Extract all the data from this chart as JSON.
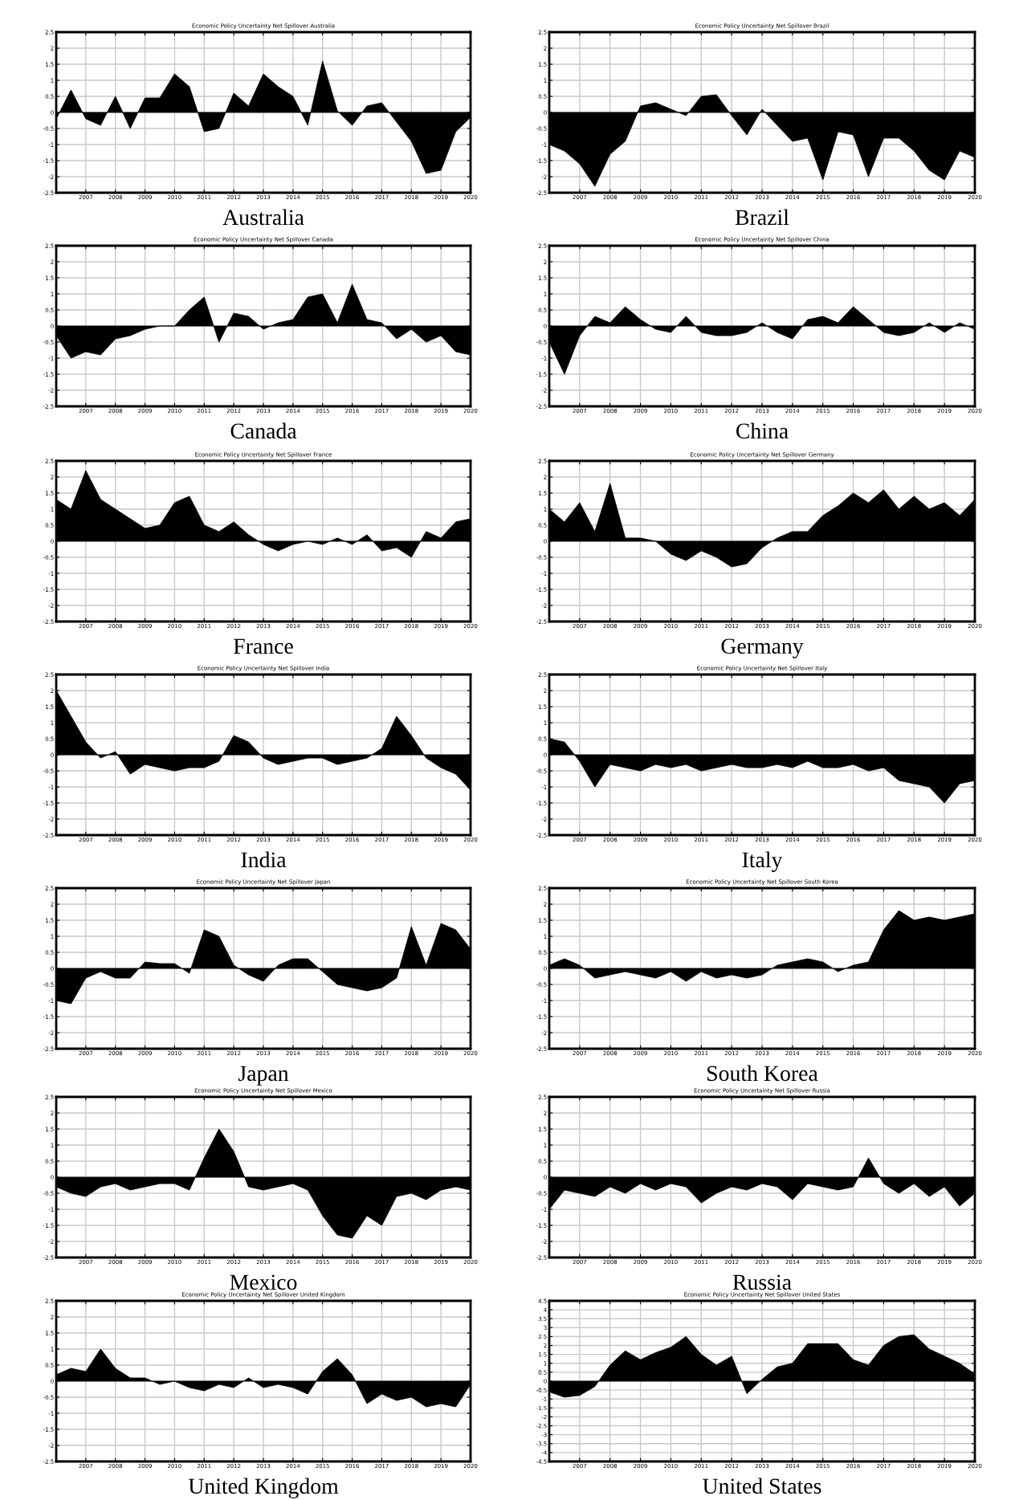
{
  "chart_data": [
    {
      "type": "area",
      "title": "Economic Policy Uncertainty Net Spillover Australia",
      "xlabel": "Australia",
      "xlim": [
        2006,
        2020
      ],
      "ylim": [
        -2.5,
        2.5
      ],
      "xticks": [
        2007,
        2008,
        2009,
        2010,
        2011,
        2012,
        2013,
        2014,
        2015,
        2016,
        2017,
        2018,
        2019,
        2020
      ],
      "yticks": [
        -2.5,
        -2,
        -1.5,
        -1,
        -0.5,
        0,
        0.5,
        1,
        1.5,
        2,
        2.5
      ],
      "grid": true,
      "x": [
        2006,
        2006.5,
        2007,
        2007.5,
        2008,
        2008.5,
        2009,
        2009.5,
        2010,
        2010.5,
        2011,
        2011.5,
        2012,
        2012.5,
        2013,
        2013.5,
        2014,
        2014.5,
        2015,
        2015.5,
        2016,
        2016.5,
        2017,
        2017.5,
        2018,
        2018.5,
        2019,
        2019.5,
        2020
      ],
      "series": [
        {
          "color": "#000000",
          "values": [
            -0.2,
            0.7,
            -0.2,
            -0.4,
            0.5,
            -0.5,
            0.45,
            0.45,
            1.2,
            0.8,
            -0.6,
            -0.5,
            0.6,
            0.2,
            1.2,
            0.8,
            0.5,
            -0.4,
            1.6,
            0.05,
            -0.4,
            0.2,
            0.3,
            -0.3,
            -0.9,
            -1.9,
            -1.8,
            -0.6,
            -0.15
          ]
        }
      ]
    },
    {
      "type": "area",
      "title": "Economic Policy Uncertainty Net Spillover Brazil",
      "xlabel": "Brazil",
      "xlim": [
        2006,
        2020
      ],
      "ylim": [
        -2.5,
        2.5
      ],
      "xticks": [
        2007,
        2008,
        2009,
        2010,
        2011,
        2012,
        2013,
        2014,
        2015,
        2016,
        2017,
        2018,
        2019,
        2020
      ],
      "yticks": [
        -2.5,
        -2,
        -1.5,
        -1,
        -0.5,
        0,
        0.5,
        1,
        1.5,
        2,
        2.5
      ],
      "grid": true,
      "x": [
        2006,
        2006.5,
        2007,
        2007.5,
        2008,
        2008.5,
        2009,
        2009.5,
        2010,
        2010.5,
        2011,
        2011.5,
        2012,
        2012.5,
        2013,
        2013.5,
        2014,
        2014.5,
        2015,
        2015.5,
        2016,
        2016.5,
        2017,
        2017.5,
        2018,
        2018.5,
        2019,
        2019.5,
        2020
      ],
      "series": [
        {
          "color": "#000000",
          "values": [
            -1.0,
            -1.2,
            -1.6,
            -2.3,
            -1.3,
            -0.9,
            0.2,
            0.3,
            0.1,
            -0.1,
            0.5,
            0.55,
            -0.1,
            -0.7,
            0.1,
            -0.4,
            -0.9,
            -0.8,
            -2.1,
            -0.6,
            -0.7,
            -2.0,
            -0.8,
            -0.8,
            -1.2,
            -1.8,
            -2.1,
            -1.2,
            -1.4
          ]
        }
      ]
    },
    {
      "type": "area",
      "title": "Economic Policy Uncertainty Net Spillover Canada",
      "xlabel": "Canada",
      "xlim": [
        2006,
        2020
      ],
      "ylim": [
        -2.5,
        2.5
      ],
      "xticks": [
        2007,
        2008,
        2009,
        2010,
        2011,
        2012,
        2013,
        2014,
        2015,
        2016,
        2017,
        2018,
        2019,
        2020
      ],
      "yticks": [
        -2.5,
        -2,
        -1.5,
        -1,
        -0.5,
        0,
        0.5,
        1,
        1.5,
        2,
        2.5
      ],
      "grid": true,
      "x": [
        2006,
        2006.5,
        2007,
        2007.5,
        2008,
        2008.5,
        2009,
        2009.5,
        2010,
        2010.5,
        2011,
        2011.5,
        2012,
        2012.5,
        2013,
        2013.5,
        2014,
        2014.5,
        2015,
        2015.5,
        2016,
        2016.5,
        2017,
        2017.5,
        2018,
        2018.5,
        2019,
        2019.5,
        2020
      ],
      "series": [
        {
          "color": "#000000",
          "values": [
            -0.3,
            -1.0,
            -0.8,
            -0.9,
            -0.4,
            -0.3,
            -0.1,
            0,
            0,
            0.5,
            0.9,
            -0.5,
            0.4,
            0.3,
            -0.1,
            0.1,
            0.2,
            0.9,
            1.0,
            0.1,
            1.3,
            0.2,
            0.1,
            -0.4,
            -0.1,
            -0.5,
            -0.3,
            -0.8,
            -0.9
          ]
        }
      ]
    },
    {
      "type": "area",
      "title": "Economic Policy Uncertainty Net Spillover China",
      "xlabel": "China",
      "xlim": [
        2006,
        2020
      ],
      "ylim": [
        -2.5,
        2.5
      ],
      "xticks": [
        2007,
        2008,
        2009,
        2010,
        2011,
        2012,
        2013,
        2014,
        2015,
        2016,
        2017,
        2018,
        2019,
        2020
      ],
      "yticks": [
        -2.5,
        -2,
        -1.5,
        -1,
        -0.5,
        0,
        0.5,
        1,
        1.5,
        2,
        2.5
      ],
      "grid": true,
      "x": [
        2006,
        2006.5,
        2007,
        2007.5,
        2008,
        2008.5,
        2009,
        2009.5,
        2010,
        2010.5,
        2011,
        2011.5,
        2012,
        2012.5,
        2013,
        2013.5,
        2014,
        2014.5,
        2015,
        2015.5,
        2016,
        2016.5,
        2017,
        2017.5,
        2018,
        2018.5,
        2019,
        2019.5,
        2020
      ],
      "series": [
        {
          "color": "#000000",
          "values": [
            -0.5,
            -1.5,
            -0.3,
            0.3,
            0.1,
            0.6,
            0.2,
            -0.1,
            -0.2,
            0.3,
            -0.2,
            -0.3,
            -0.3,
            -0.2,
            0.1,
            -0.2,
            -0.4,
            0.2,
            0.3,
            0.1,
            0.6,
            0.2,
            -0.2,
            -0.3,
            -0.2,
            0.1,
            -0.2,
            0.1,
            -0.1
          ]
        }
      ]
    },
    {
      "type": "area",
      "title": "Economic Policy Uncertainty Net Spillover France",
      "xlabel": "France",
      "xlim": [
        2006,
        2020
      ],
      "ylim": [
        -2.5,
        2.5
      ],
      "xticks": [
        2007,
        2008,
        2009,
        2010,
        2011,
        2012,
        2013,
        2014,
        2015,
        2016,
        2017,
        2018,
        2019,
        2020
      ],
      "yticks": [
        -2.5,
        -2,
        -1.5,
        -1,
        -0.5,
        0,
        0.5,
        1,
        1.5,
        2,
        2.5
      ],
      "grid": true,
      "x": [
        2006,
        2006.5,
        2007,
        2007.5,
        2008,
        2008.5,
        2009,
        2009.5,
        2010,
        2010.5,
        2011,
        2011.5,
        2012,
        2012.5,
        2013,
        2013.5,
        2014,
        2014.5,
        2015,
        2015.5,
        2016,
        2016.5,
        2017,
        2017.5,
        2018,
        2018.5,
        2019,
        2019.5,
        2020
      ],
      "series": [
        {
          "color": "#000000",
          "values": [
            1.3,
            1.0,
            2.2,
            1.3,
            1.0,
            0.7,
            0.4,
            0.5,
            1.2,
            1.4,
            0.5,
            0.3,
            0.6,
            0.2,
            -0.1,
            -0.3,
            -0.1,
            0,
            -0.1,
            0.1,
            -0.1,
            0.2,
            -0.3,
            -0.2,
            -0.5,
            0.3,
            0.1,
            0.6,
            0.7
          ]
        }
      ]
    },
    {
      "type": "area",
      "title": "Economic Policy Uncertainty Net Spillover Germany",
      "xlabel": "Germany",
      "xlim": [
        2006,
        2020
      ],
      "ylim": [
        -2.5,
        2.5
      ],
      "xticks": [
        2007,
        2008,
        2009,
        2010,
        2011,
        2012,
        2013,
        2014,
        2015,
        2016,
        2017,
        2018,
        2019,
        2020
      ],
      "yticks": [
        -2.5,
        -2,
        -1.5,
        -1,
        -0.5,
        0,
        0.5,
        1,
        1.5,
        2,
        2.5
      ],
      "grid": true,
      "x": [
        2006,
        2006.5,
        2007,
        2007.5,
        2008,
        2008.5,
        2009,
        2009.5,
        2010,
        2010.5,
        2011,
        2011.5,
        2012,
        2012.5,
        2013,
        2013.5,
        2014,
        2014.5,
        2015,
        2015.5,
        2016,
        2016.5,
        2017,
        2017.5,
        2018,
        2018.5,
        2019,
        2019.5,
        2020
      ],
      "series": [
        {
          "color": "#000000",
          "values": [
            1.0,
            0.6,
            1.2,
            0.3,
            1.8,
            0.1,
            0.1,
            0,
            -0.4,
            -0.6,
            -0.3,
            -0.5,
            -0.8,
            -0.7,
            -0.2,
            0.1,
            0.3,
            0.3,
            0.8,
            1.1,
            1.5,
            1.2,
            1.6,
            1.0,
            1.4,
            1.0,
            1.2,
            0.8,
            1.3
          ]
        }
      ]
    },
    {
      "type": "area",
      "title": "Economic Policy Uncertainty Net Spillover India",
      "xlabel": "India",
      "xlim": [
        2006,
        2020
      ],
      "ylim": [
        -2.5,
        2.5
      ],
      "xticks": [
        2007,
        2008,
        2009,
        2010,
        2011,
        2012,
        2013,
        2014,
        2015,
        2016,
        2017,
        2018,
        2019,
        2020
      ],
      "yticks": [
        -2.5,
        -2,
        -1.5,
        -1,
        -0.5,
        0,
        0.5,
        1,
        1.5,
        2,
        2.5
      ],
      "grid": true,
      "x": [
        2006,
        2006.5,
        2007,
        2007.5,
        2008,
        2008.5,
        2009,
        2009.5,
        2010,
        2010.5,
        2011,
        2011.5,
        2012,
        2012.5,
        2013,
        2013.5,
        2014,
        2014.5,
        2015,
        2015.5,
        2016,
        2016.5,
        2017,
        2017.5,
        2018,
        2018.5,
        2019,
        2019.5,
        2020
      ],
      "series": [
        {
          "color": "#000000",
          "values": [
            2.0,
            1.2,
            0.4,
            -0.1,
            0.1,
            -0.6,
            -0.3,
            -0.4,
            -0.5,
            -0.4,
            -0.4,
            -0.2,
            0.6,
            0.4,
            -0.1,
            -0.3,
            -0.2,
            -0.1,
            -0.1,
            -0.3,
            -0.2,
            -0.1,
            0.2,
            1.2,
            0.6,
            -0.1,
            -0.4,
            -0.6,
            -1.1
          ]
        }
      ]
    },
    {
      "type": "area",
      "title": "Economic Policy Uncertainty Net Spillover Italy",
      "xlabel": "Italy",
      "xlim": [
        2006,
        2020
      ],
      "ylim": [
        -2.5,
        2.5
      ],
      "xticks": [
        2007,
        2008,
        2009,
        2010,
        2011,
        2012,
        2013,
        2014,
        2015,
        2016,
        2017,
        2018,
        2019,
        2020
      ],
      "yticks": [
        -2.5,
        -2,
        -1.5,
        -1,
        -0.5,
        0,
        0.5,
        1,
        1.5,
        2,
        2.5
      ],
      "grid": true,
      "x": [
        2006,
        2006.5,
        2007,
        2007.5,
        2008,
        2008.5,
        2009,
        2009.5,
        2010,
        2010.5,
        2011,
        2011.5,
        2012,
        2012.5,
        2013,
        2013.5,
        2014,
        2014.5,
        2015,
        2015.5,
        2016,
        2016.5,
        2017,
        2017.5,
        2018,
        2018.5,
        2019,
        2019.5,
        2020
      ],
      "series": [
        {
          "color": "#000000",
          "values": [
            0.5,
            0.4,
            -0.2,
            -1.0,
            -0.3,
            -0.4,
            -0.5,
            -0.3,
            -0.4,
            -0.3,
            -0.5,
            -0.4,
            -0.3,
            -0.4,
            -0.4,
            -0.3,
            -0.4,
            -0.2,
            -0.4,
            -0.4,
            -0.3,
            -0.5,
            -0.4,
            -0.8,
            -0.9,
            -1.0,
            -1.5,
            -0.9,
            -0.8
          ]
        }
      ]
    },
    {
      "type": "area",
      "title": "Economic Policy Uncertainty Net Spillover Japan",
      "xlabel": "Japan",
      "xlim": [
        2006,
        2020
      ],
      "ylim": [
        -2.5,
        2.5
      ],
      "xticks": [
        2007,
        2008,
        2009,
        2010,
        2011,
        2012,
        2013,
        2014,
        2015,
        2016,
        2017,
        2018,
        2019,
        2020
      ],
      "yticks": [
        -2.5,
        -2,
        -1.5,
        -1,
        -0.5,
        0,
        0.5,
        1,
        1.5,
        2,
        2.5
      ],
      "grid": true,
      "x": [
        2006,
        2006.5,
        2007,
        2007.5,
        2008,
        2008.5,
        2009,
        2009.5,
        2010,
        2010.5,
        2011,
        2011.5,
        2012,
        2012.5,
        2013,
        2013.5,
        2014,
        2014.5,
        2015,
        2015.5,
        2016,
        2016.5,
        2017,
        2017.5,
        2018,
        2018.5,
        2019,
        2019.5,
        2020
      ],
      "series": [
        {
          "color": "#000000",
          "values": [
            -1.0,
            -1.1,
            -0.3,
            -0.1,
            -0.3,
            -0.3,
            0.2,
            0.15,
            0.15,
            -0.15,
            1.2,
            1.0,
            0.1,
            -0.2,
            -0.4,
            0.1,
            0.3,
            0.3,
            -0.1,
            -0.5,
            -0.6,
            -0.7,
            -0.6,
            -0.3,
            1.3,
            0.1,
            1.4,
            1.2,
            0.6
          ]
        }
      ]
    },
    {
      "type": "area",
      "title": "Economic Policy Uncertainty Net Spillover South Korea",
      "xlabel": "South Korea",
      "xlim": [
        2006,
        2020
      ],
      "ylim": [
        -2.5,
        2.5
      ],
      "xticks": [
        2007,
        2008,
        2009,
        2010,
        2011,
        2012,
        2013,
        2014,
        2015,
        2016,
        2017,
        2018,
        2019,
        2020
      ],
      "yticks": [
        -2.5,
        -2,
        -1.5,
        -1,
        -0.5,
        0,
        0.5,
        1,
        1.5,
        2,
        2.5
      ],
      "grid": true,
      "x": [
        2006,
        2006.5,
        2007,
        2007.5,
        2008,
        2008.5,
        2009,
        2009.5,
        2010,
        2010.5,
        2011,
        2011.5,
        2012,
        2012.5,
        2013,
        2013.5,
        2014,
        2014.5,
        2015,
        2015.5,
        2016,
        2016.5,
        2017,
        2017.5,
        2018,
        2018.5,
        2019,
        2019.5,
        2020
      ],
      "series": [
        {
          "color": "#000000",
          "values": [
            0.1,
            0.3,
            0.1,
            -0.3,
            -0.2,
            -0.1,
            -0.2,
            -0.3,
            -0.1,
            -0.4,
            -0.1,
            -0.3,
            -0.2,
            -0.3,
            -0.2,
            0.1,
            0.2,
            0.3,
            0.2,
            -0.1,
            0.1,
            0.2,
            1.2,
            1.8,
            1.5,
            1.6,
            1.5,
            1.6,
            1.7
          ]
        }
      ]
    },
    {
      "type": "area",
      "title": "Economic Policy Uncertainty Net Spillover Mexico",
      "xlabel": "Mexico",
      "xlim": [
        2006,
        2020
      ],
      "ylim": [
        -2.5,
        2.5
      ],
      "xticks": [
        2007,
        2008,
        2009,
        2010,
        2011,
        2012,
        2013,
        2014,
        2015,
        2016,
        2017,
        2018,
        2019,
        2020
      ],
      "yticks": [
        -2.5,
        -2,
        -1.5,
        -1,
        -0.5,
        0,
        0.5,
        1,
        1.5,
        2,
        2.5
      ],
      "grid": true,
      "x": [
        2006,
        2006.5,
        2007,
        2007.5,
        2008,
        2008.5,
        2009,
        2009.5,
        2010,
        2010.5,
        2011,
        2011.5,
        2012,
        2012.5,
        2013,
        2013.5,
        2014,
        2014.5,
        2015,
        2015.5,
        2016,
        2016.5,
        2017,
        2017.5,
        2018,
        2018.5,
        2019,
        2019.5,
        2020
      ],
      "series": [
        {
          "color": "#000000",
          "values": [
            -0.3,
            -0.5,
            -0.6,
            -0.3,
            -0.2,
            -0.4,
            -0.3,
            -0.2,
            -0.2,
            -0.4,
            0.6,
            1.5,
            0.8,
            -0.3,
            -0.4,
            -0.3,
            -0.2,
            -0.4,
            -1.2,
            -1.8,
            -1.9,
            -1.2,
            -1.5,
            -0.6,
            -0.5,
            -0.7,
            -0.4,
            -0.3,
            -0.4
          ]
        }
      ]
    },
    {
      "type": "area",
      "title": "Economic Policy Uncertainty Net Spillover Russia",
      "xlabel": "Russia",
      "xlim": [
        2006,
        2020
      ],
      "ylim": [
        -2.5,
        2.5
      ],
      "xticks": [
        2007,
        2008,
        2009,
        2010,
        2011,
        2012,
        2013,
        2014,
        2015,
        2016,
        2017,
        2018,
        2019,
        2020
      ],
      "yticks": [
        -2.5,
        -2,
        -1.5,
        -1,
        -0.5,
        0,
        0.5,
        1,
        1.5,
        2,
        2.5
      ],
      "grid": true,
      "x": [
        2006,
        2006.5,
        2007,
        2007.5,
        2008,
        2008.5,
        2009,
        2009.5,
        2010,
        2010.5,
        2011,
        2011.5,
        2012,
        2012.5,
        2013,
        2013.5,
        2014,
        2014.5,
        2015,
        2015.5,
        2016,
        2016.5,
        2017,
        2017.5,
        2018,
        2018.5,
        2019,
        2019.5,
        2020
      ],
      "series": [
        {
          "color": "#000000",
          "values": [
            -1.0,
            -0.4,
            -0.5,
            -0.6,
            -0.3,
            -0.5,
            -0.2,
            -0.4,
            -0.2,
            -0.3,
            -0.8,
            -0.5,
            -0.3,
            -0.4,
            -0.2,
            -0.3,
            -0.7,
            -0.2,
            -0.3,
            -0.4,
            -0.3,
            0.6,
            -0.2,
            -0.5,
            -0.2,
            -0.6,
            -0.3,
            -0.9,
            -0.5
          ]
        }
      ]
    },
    {
      "type": "area",
      "title": "Economic Policy Uncertainty Net Spillover United Kingdom",
      "xlabel": "United Kingdom",
      "xlim": [
        2006,
        2020
      ],
      "ylim": [
        -2.5,
        2.5
      ],
      "xticks": [
        2007,
        2008,
        2009,
        2010,
        2011,
        2012,
        2013,
        2014,
        2015,
        2016,
        2017,
        2018,
        2019,
        2020
      ],
      "yticks": [
        -2.5,
        -2,
        -1.5,
        -1,
        -0.5,
        0,
        0.5,
        1,
        1.5,
        2,
        2.5
      ],
      "grid": true,
      "x": [
        2006,
        2006.5,
        2007,
        2007.5,
        2008,
        2008.5,
        2009,
        2009.5,
        2010,
        2010.5,
        2011,
        2011.5,
        2012,
        2012.5,
        2013,
        2013.5,
        2014,
        2014.5,
        2015,
        2015.5,
        2016,
        2016.5,
        2017,
        2017.5,
        2018,
        2018.5,
        2019,
        2019.5,
        2020
      ],
      "series": [
        {
          "color": "#000000",
          "values": [
            0.2,
            0.4,
            0.3,
            1.0,
            0.4,
            0.1,
            0.1,
            -0.1,
            0,
            -0.2,
            -0.3,
            -0.1,
            -0.2,
            0.1,
            -0.2,
            -0.1,
            -0.2,
            -0.4,
            0.3,
            0.7,
            0.2,
            -0.7,
            -0.4,
            -0.6,
            -0.5,
            -0.8,
            -0.7,
            -0.8,
            -0.1
          ]
        }
      ]
    },
    {
      "type": "area",
      "title": "Economic Policy Uncertainty Net Spillover United States",
      "xlabel": "United States",
      "xlim": [
        2006,
        2020
      ],
      "ylim": [
        -4.5,
        4.5
      ],
      "xticks": [
        2007,
        2008,
        2009,
        2010,
        2011,
        2012,
        2013,
        2014,
        2015,
        2016,
        2017,
        2018,
        2019,
        2020
      ],
      "yticks": [
        -4.5,
        -4,
        -3.5,
        -3,
        -2.5,
        -2,
        -1.5,
        -1,
        -0.5,
        0,
        0.5,
        1,
        1.5,
        2,
        2.5,
        3,
        3.5,
        4,
        4.5
      ],
      "grid": true,
      "x": [
        2006,
        2006.5,
        2007,
        2007.5,
        2008,
        2008.5,
        2009,
        2009.5,
        2010,
        2010.5,
        2011,
        2011.5,
        2012,
        2012.5,
        2013,
        2013.5,
        2014,
        2014.5,
        2015,
        2015.5,
        2016,
        2016.5,
        2017,
        2017.5,
        2018,
        2018.5,
        2019,
        2019.5,
        2020
      ],
      "series": [
        {
          "color": "#000000",
          "values": [
            -0.6,
            -0.9,
            -0.8,
            -0.3,
            0.9,
            1.7,
            1.2,
            1.6,
            1.9,
            2.5,
            1.5,
            0.9,
            1.4,
            -0.7,
            0.1,
            0.8,
            1.0,
            2.1,
            2.1,
            2.1,
            1.2,
            0.9,
            2.0,
            2.5,
            2.6,
            1.8,
            1.4,
            1.0,
            0.4
          ]
        }
      ]
    }
  ]
}
